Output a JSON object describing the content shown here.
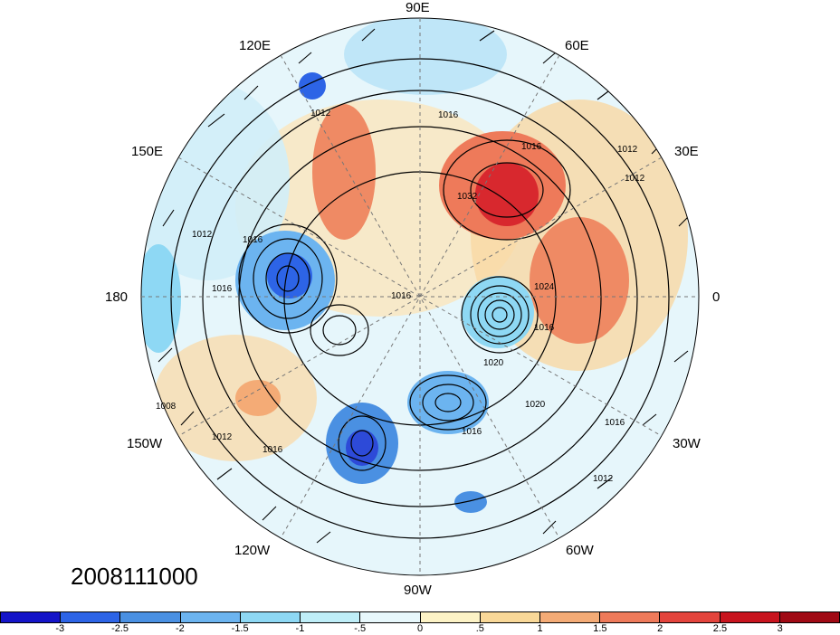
{
  "timestamp": "2008111000",
  "longitude_labels": [
    "90E",
    "120E",
    "60E",
    "150E",
    "30E",
    "180",
    "0",
    "150W",
    "30W",
    "120W",
    "60W",
    "90W"
  ],
  "isobar_labels": [
    "1012",
    "1016",
    "1016",
    "1012",
    "1016",
    "1032",
    "1024",
    "1012",
    "1016",
    "1016",
    "1008",
    "1020",
    "1012",
    "1016",
    "1016",
    "1020",
    "1016",
    "1016",
    "1012",
    "1012"
  ],
  "colorbar": {
    "ticks": [
      "-3",
      "-2.5",
      "-2",
      "-1.5",
      "-1",
      "-.5",
      "0",
      ".5",
      "1",
      "1.5",
      "2",
      "2.5",
      "3"
    ],
    "colors": [
      "#1414c8",
      "#2d64e6",
      "#4a90e2",
      "#6cb4f0",
      "#8ed8f4",
      "#bfeef8",
      "#e8f8fc",
      "#fdf3c6",
      "#f9d898",
      "#f4ab76",
      "#ee7a5a",
      "#e3443c",
      "#c8141e",
      "#a00a14"
    ]
  }
}
